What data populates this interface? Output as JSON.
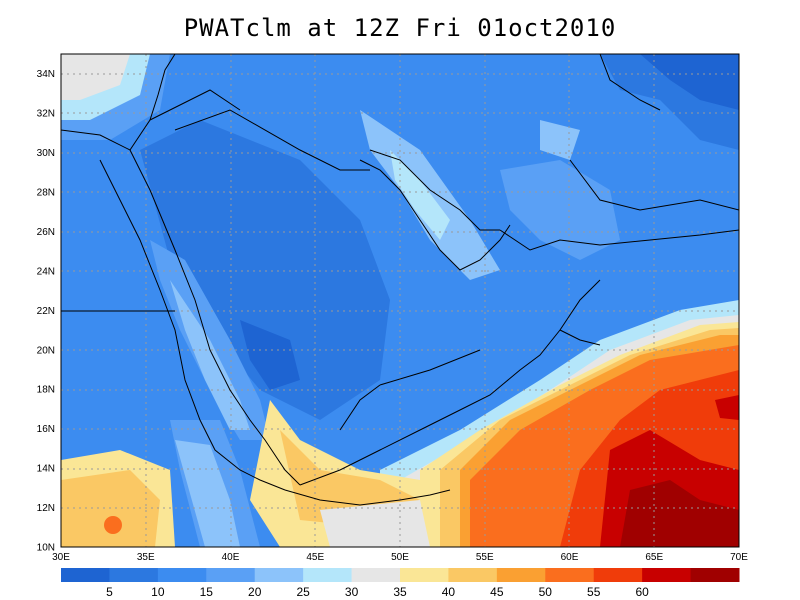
{
  "title": "PWATclm at 12Z Fri 01oct2010",
  "map": {
    "lon_labels": [
      "30E",
      "35E",
      "40E",
      "45E",
      "50E",
      "55E",
      "60E",
      "65E",
      "70E"
    ],
    "lat_labels": [
      "10N",
      "12N",
      "14N",
      "16N",
      "18N",
      "20N",
      "22N",
      "24N",
      "26N",
      "28N",
      "30N",
      "32N",
      "34N"
    ],
    "lon_range": [
      30,
      70
    ],
    "lat_range": [
      10,
      35
    ]
  },
  "colorbar": {
    "labels": [
      "5",
      "10",
      "15",
      "20",
      "25",
      "30",
      "35",
      "40",
      "45",
      "50",
      "55",
      "60"
    ],
    "colors": [
      "#1e64d2",
      "#2c78e0",
      "#3c8cf0",
      "#5aa0f5",
      "#8cc3fa",
      "#b4e6fa",
      "#e6e6e6",
      "#fae696",
      "#fac864",
      "#faa032",
      "#fa6e1e",
      "#f03c0a",
      "#c80000",
      "#a00000"
    ]
  }
}
